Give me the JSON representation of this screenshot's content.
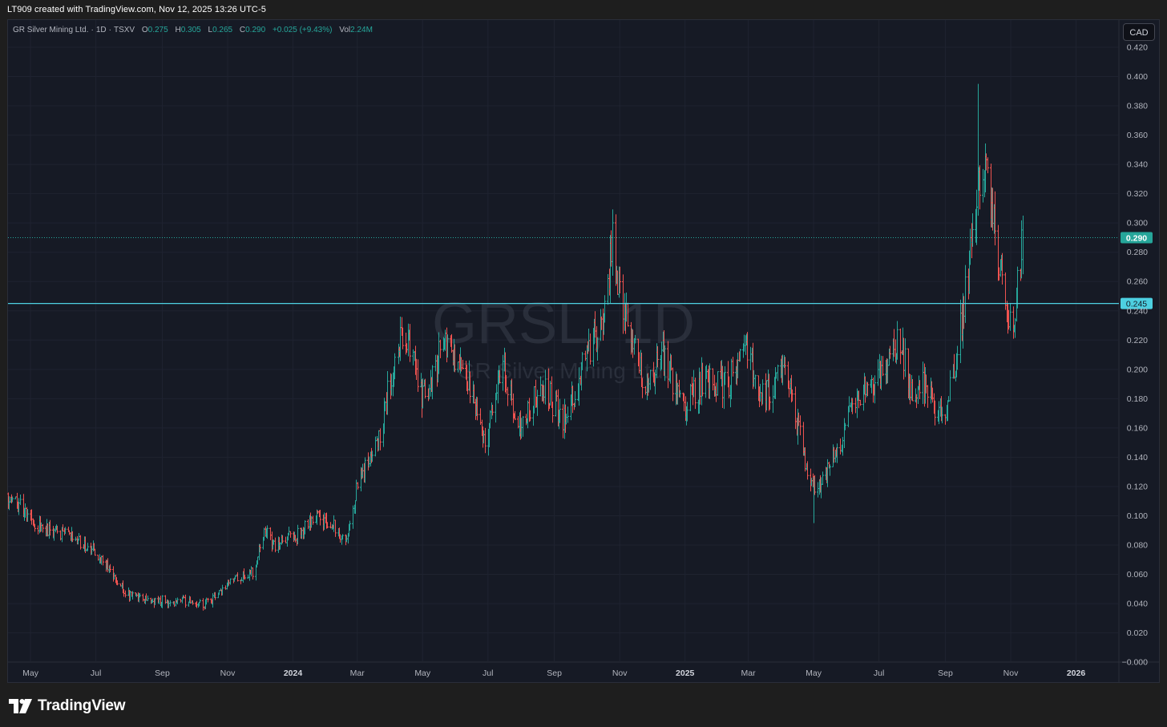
{
  "header": {
    "credit": "LT909 created with TradingView.com, Nov 12, 2025 13:26 UTC-5"
  },
  "legend": {
    "symbol": "GR Silver Mining Ltd.",
    "interval": "1D",
    "exchange": "TSXV",
    "o_label": "O",
    "o_value": "0.275",
    "h_label": "H",
    "h_value": "0.305",
    "l_label": "L",
    "l_value": "0.265",
    "c_label": "C",
    "c_value": "0.290",
    "change": "+0.025 (+9.43%)",
    "vol_label": "Vol",
    "vol_value": "2.24M"
  },
  "currency_button": "CAD",
  "watermark": {
    "ticker": "GRSL, 1D",
    "name": "GR Silver Mining Ltd."
  },
  "footer": {
    "logo_text": "TradingView"
  },
  "colors": {
    "background": "#161a25",
    "grid": "#1f2330",
    "up": "#26a69a",
    "down": "#ef5350",
    "hline": "#4dd0e1",
    "axis_text": "#b2b5be"
  },
  "chart_data": {
    "type": "ohlc",
    "symbol": "GRSL",
    "interval": "1D",
    "currency": "CAD",
    "ylim": [
      0,
      0.42
    ],
    "y_ticks": [
      0.42,
      0.4,
      0.38,
      0.36,
      0.34,
      0.32,
      0.3,
      0.28,
      0.26,
      0.24,
      0.22,
      0.2,
      0.18,
      0.16,
      0.14,
      0.12,
      0.1,
      0.08,
      0.06,
      0.04,
      0.02,
      0.0
    ],
    "y_tick_labels": [
      "0.420",
      "0.400",
      "0.380",
      "0.360",
      "0.340",
      "0.320",
      "0.300",
      "0.280",
      "0.260",
      "0.240",
      "0.220",
      "0.200",
      "0.180",
      "0.160",
      "0.140",
      "0.120",
      "0.100",
      "0.080",
      "0.060",
      "0.040",
      "0.020",
      "−0.000"
    ],
    "x_ticks": [
      {
        "label": "May",
        "date": "2023-05-01"
      },
      {
        "label": "Jul",
        "date": "2023-07-01"
      },
      {
        "label": "Sep",
        "date": "2023-09-01"
      },
      {
        "label": "Nov",
        "date": "2023-11-01"
      },
      {
        "label": "2024",
        "date": "2024-01-01",
        "bold": true
      },
      {
        "label": "Mar",
        "date": "2024-03-01"
      },
      {
        "label": "May",
        "date": "2024-05-01"
      },
      {
        "label": "Jul",
        "date": "2024-07-01"
      },
      {
        "label": "Sep",
        "date": "2024-09-01"
      },
      {
        "label": "Nov",
        "date": "2024-11-01"
      },
      {
        "label": "2025",
        "date": "2025-01-01",
        "bold": true
      },
      {
        "label": "Mar",
        "date": "2025-03-01"
      },
      {
        "label": "May",
        "date": "2025-05-01"
      },
      {
        "label": "Jul",
        "date": "2025-07-01"
      },
      {
        "label": "Sep",
        "date": "2025-09-01"
      },
      {
        "label": "Nov",
        "date": "2025-11-01"
      },
      {
        "label": "2026",
        "date": "2026-01-01",
        "bold": true
      }
    ],
    "x_range": [
      "2023-04-10",
      "2026-02-10"
    ],
    "price_anchors": [
      [
        "2023-04-10",
        0.115
      ],
      [
        "2023-05-10",
        0.092
      ],
      [
        "2023-06-10",
        0.085
      ],
      [
        "2023-07-01",
        0.075
      ],
      [
        "2023-08-01",
        0.045
      ],
      [
        "2023-08-15",
        0.042
      ],
      [
        "2023-09-15",
        0.042
      ],
      [
        "2023-10-15",
        0.04
      ],
      [
        "2023-11-01",
        0.055
      ],
      [
        "2023-11-25",
        0.062
      ],
      [
        "2023-12-05",
        0.09
      ],
      [
        "2023-12-15",
        0.08
      ],
      [
        "2024-01-10",
        0.09
      ],
      [
        "2024-01-25",
        0.1
      ],
      [
        "2024-02-20",
        0.085
      ],
      [
        "2024-03-01",
        0.12
      ],
      [
        "2024-03-20",
        0.15
      ],
      [
        "2024-04-05",
        0.21
      ],
      [
        "2024-04-15",
        0.225
      ],
      [
        "2024-05-01",
        0.18
      ],
      [
        "2024-05-20",
        0.215
      ],
      [
        "2024-06-10",
        0.2
      ],
      [
        "2024-06-28",
        0.15
      ],
      [
        "2024-07-15",
        0.2
      ],
      [
        "2024-08-01",
        0.16
      ],
      [
        "2024-08-20",
        0.19
      ],
      [
        "2024-09-10",
        0.165
      ],
      [
        "2024-10-01",
        0.21
      ],
      [
        "2024-10-15",
        0.23
      ],
      [
        "2024-10-25",
        0.285
      ],
      [
        "2024-11-05",
        0.24
      ],
      [
        "2024-11-25",
        0.19
      ],
      [
        "2024-12-10",
        0.21
      ],
      [
        "2025-01-01",
        0.175
      ],
      [
        "2025-01-20",
        0.195
      ],
      [
        "2025-02-10",
        0.19
      ],
      [
        "2025-02-25",
        0.215
      ],
      [
        "2025-03-15",
        0.18
      ],
      [
        "2025-04-01",
        0.2
      ],
      [
        "2025-04-10",
        0.18
      ],
      [
        "2025-04-25",
        0.13
      ],
      [
        "2025-05-05",
        0.12
      ],
      [
        "2025-05-20",
        0.14
      ],
      [
        "2025-06-10",
        0.18
      ],
      [
        "2025-06-25",
        0.19
      ],
      [
        "2025-07-10",
        0.2
      ],
      [
        "2025-07-20",
        0.22
      ],
      [
        "2025-08-01",
        0.185
      ],
      [
        "2025-08-15",
        0.19
      ],
      [
        "2025-08-30",
        0.16
      ],
      [
        "2025-09-15",
        0.23
      ],
      [
        "2025-09-25",
        0.28
      ],
      [
        "2025-10-05",
        0.35
      ],
      [
        "2025-10-12",
        0.32
      ],
      [
        "2025-10-22",
        0.27
      ],
      [
        "2025-10-28",
        0.23
      ],
      [
        "2025-11-05",
        0.24
      ],
      [
        "2025-11-12",
        0.29
      ]
    ],
    "notable": {
      "high_2024": 0.295,
      "high_2025": 0.395,
      "low_2025": 0.095
    },
    "last": {
      "date": "2025-11-12",
      "open": 0.275,
      "high": 0.305,
      "low": 0.265,
      "close": 0.29
    },
    "price_line": 0.29,
    "price_line_label": "0.290",
    "horizontal_line": 0.245,
    "horizontal_line_label": "0.245"
  }
}
